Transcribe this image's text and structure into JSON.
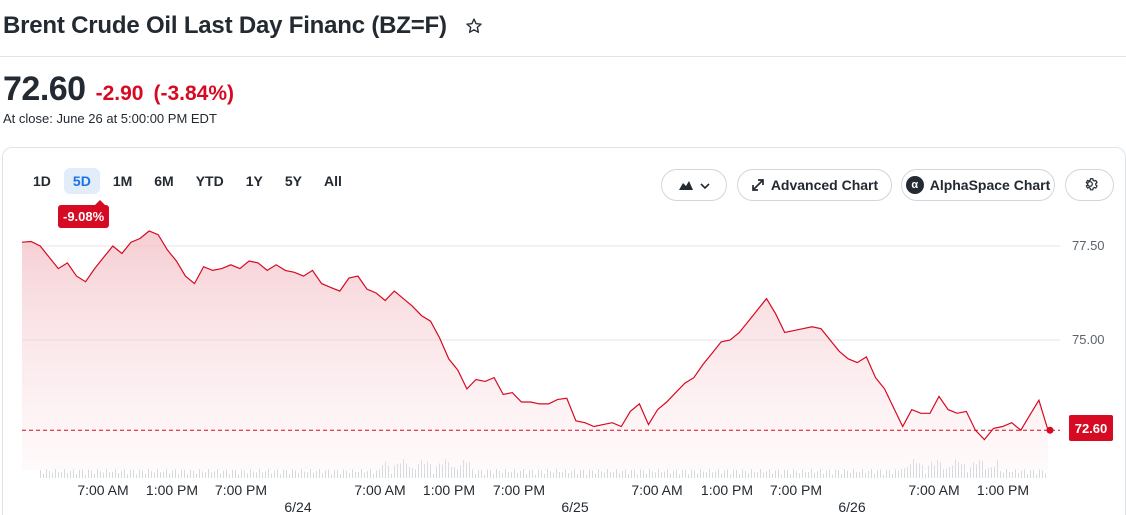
{
  "header": {
    "title": "Brent Crude Oil Last Day Financ (BZ=F)",
    "star_icon": "star-outline-icon"
  },
  "quote": {
    "price": "72.60",
    "change": "-2.90",
    "change_pct": "(-3.84%)",
    "close_note": "At close: June 26 at 5:00:00 PM EDT",
    "down_color": "#d60a22"
  },
  "ranges": {
    "items": [
      "1D",
      "5D",
      "1M",
      "6M",
      "YTD",
      "1Y",
      "5Y",
      "All"
    ],
    "active": "5D",
    "period_change": "-9.08%"
  },
  "toolbar": {
    "chart_type_icon": "mountain-chart-icon",
    "advanced_label": "Advanced Chart",
    "alpha_label": "AlphaSpace Chart",
    "alpha_icon_letter": "α",
    "settings_icon": "gear-icon"
  },
  "chart_data": {
    "type": "area",
    "y_ticks": [
      "77.50",
      "75.00"
    ],
    "ylim": [
      72.2,
      78.0
    ],
    "last_value": "72.60",
    "x_time_labels": [
      "7:00 AM",
      "1:00 PM",
      "7:00 PM",
      "7:00 AM",
      "1:00 PM",
      "7:00 PM",
      "7:00 AM",
      "1:00 PM",
      "7:00 PM",
      "7:00 AM",
      "1:00 PM"
    ],
    "x_date_labels": [
      "6/24",
      "6/25",
      "6/26"
    ],
    "series": [
      {
        "values": [
          77.6,
          77.62,
          77.5,
          77.2,
          76.9,
          77.05,
          76.7,
          76.55,
          76.9,
          77.2,
          77.5,
          77.3,
          77.6,
          77.7,
          77.9,
          77.8,
          77.4,
          77.1,
          76.7,
          76.5,
          76.95,
          76.85,
          76.9,
          77.0,
          76.9,
          77.1,
          77.05,
          76.85,
          77.0,
          76.85,
          76.8,
          76.7,
          76.85,
          76.5,
          76.4,
          76.3,
          76.65,
          76.7,
          76.35,
          76.25,
          76.05,
          76.3,
          76.1,
          75.9,
          75.65,
          75.5,
          75.05,
          74.5,
          74.2,
          73.7,
          73.95,
          73.9,
          74.0,
          73.55,
          73.6,
          73.35,
          73.35,
          73.3,
          73.3,
          73.42,
          73.45,
          72.85,
          72.8,
          72.7,
          72.75,
          72.8,
          72.7,
          73.1,
          73.3,
          72.75,
          73.15,
          73.35,
          73.6,
          73.85,
          74.0,
          74.35,
          74.65,
          74.95,
          75.0,
          75.2,
          75.5,
          75.8,
          76.1,
          75.7,
          75.2,
          75.25,
          75.3,
          75.35,
          75.3,
          75.0,
          74.7,
          74.5,
          74.4,
          74.55,
          74.0,
          73.7,
          73.2,
          72.7,
          73.15,
          73.05,
          73.05,
          73.5,
          73.15,
          73.05,
          73.1,
          72.6,
          72.35,
          72.65,
          72.7,
          72.8,
          72.6,
          73.0,
          73.4,
          72.6
        ]
      }
    ],
    "volume_note": "volume bars"
  }
}
